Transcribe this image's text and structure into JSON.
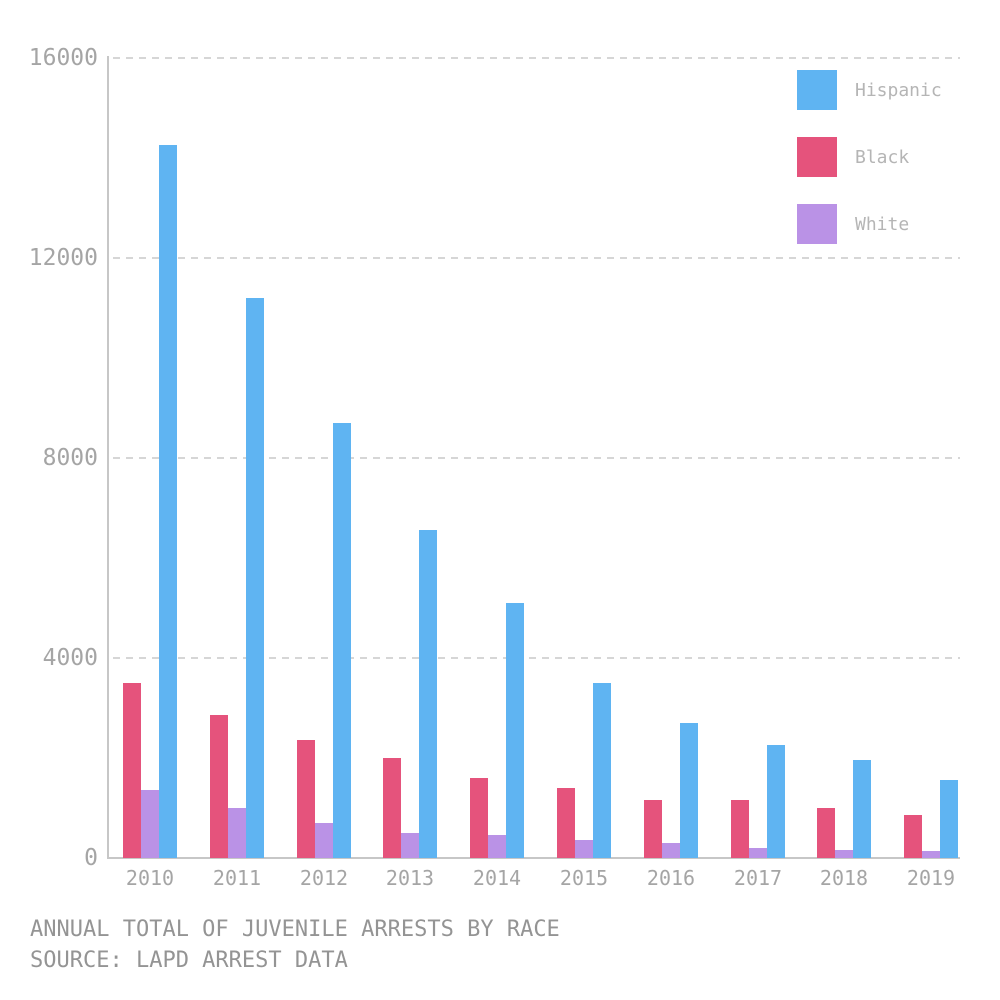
{
  "title": "ANNUAL TOTAL OF JUVENILE ARRESTS BY RACE",
  "source": "SOURCE: LAPD ARREST DATA",
  "colors": {
    "hispanic": "#5fb4f2",
    "black": "#e5537c",
    "white": "#ba92e6",
    "axis_text": "#a5a5a5",
    "legend_text": "#b5b5b5",
    "caption_text": "#949494",
    "gridline": "#d6d6d6",
    "axis_line": "#c7c7c7",
    "background": "#ffffff"
  },
  "legend": {
    "items": [
      {
        "label": "Hispanic",
        "color": "#5fb4f2"
      },
      {
        "label": "Black",
        "color": "#e5537c"
      },
      {
        "label": "White",
        "color": "#ba92e6"
      }
    ]
  },
  "chart_data": {
    "type": "bar",
    "title": "ANNUAL TOTAL OF JUVENILE ARRESTS BY RACE",
    "subtitle": "SOURCE: LAPD ARREST DATA",
    "xlabel": "",
    "ylabel": "",
    "categories": [
      "2010",
      "2011",
      "2012",
      "2013",
      "2014",
      "2015",
      "2016",
      "2017",
      "2018",
      "2019"
    ],
    "series": [
      {
        "name": "Hispanic",
        "color": "#5fb4f2",
        "values": [
          14250,
          11200,
          8700,
          6550,
          5100,
          3500,
          2700,
          2250,
          1950,
          1550
        ]
      },
      {
        "name": "Black",
        "color": "#e5537c",
        "values": [
          3500,
          2850,
          2350,
          2000,
          1600,
          1400,
          1150,
          1150,
          1000,
          850
        ]
      },
      {
        "name": "White",
        "color": "#ba92e6",
        "values": [
          1350,
          1000,
          700,
          500,
          450,
          350,
          300,
          200,
          160,
          130
        ]
      }
    ],
    "bar_order_within_group": [
      "Black",
      "White",
      "Hispanic"
    ],
    "yticks": [
      0,
      4000,
      8000,
      12000,
      16000
    ],
    "ylim": [
      0,
      16000
    ],
    "grid": "dashed horizontal gridlines at yticks",
    "legend_position": "top-right"
  }
}
